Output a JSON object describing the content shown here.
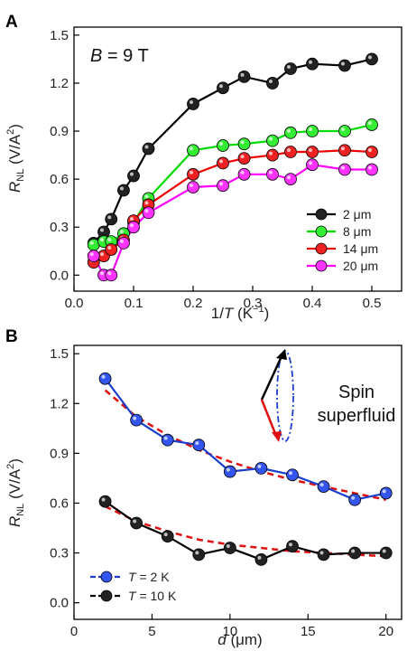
{
  "chart_data": [
    {
      "panel": "A",
      "type": "line",
      "annotation_prefix": "B",
      "annotation_suffix": " = 9 T",
      "xlabel": {
        "base": "1/",
        "italic": "T",
        "unit": " (K",
        "sup": "−1",
        "close": ")"
      },
      "ylabel": {
        "base": "R",
        "sub": "NL",
        "unit": " (V/A",
        "sup": "2",
        "close": ")"
      },
      "xlim": [
        0.0,
        0.55
      ],
      "ylim": [
        -0.1,
        1.55
      ],
      "xticks": [
        "0.0",
        "0.1",
        "0.2",
        "0.3",
        "0.4",
        "0.5"
      ],
      "yticks": [
        "0.0",
        "0.3",
        "0.6",
        "0.9",
        "1.2",
        "1.5"
      ],
      "legend_position": "lower-right",
      "series": [
        {
          "name": "2 μm",
          "color": "#000000",
          "marker_color": "#222222",
          "x": [
            0.033,
            0.05,
            0.0625,
            0.0833,
            0.1,
            0.125,
            0.2,
            0.25,
            0.2857,
            0.3333,
            0.3636,
            0.4,
            0.4545,
            0.5
          ],
          "y": [
            0.2,
            0.27,
            0.35,
            0.53,
            0.62,
            0.79,
            1.07,
            1.17,
            1.24,
            1.2,
            1.29,
            1.32,
            1.31,
            1.35
          ]
        },
        {
          "name": "8 μm",
          "color": "#00dd00",
          "marker_color": "#33ee33",
          "x": [
            0.033,
            0.05,
            0.0625,
            0.0833,
            0.1,
            0.125,
            0.2,
            0.25,
            0.2857,
            0.3333,
            0.3636,
            0.4,
            0.4545,
            0.5
          ],
          "y": [
            0.19,
            0.21,
            0.21,
            0.26,
            0.33,
            0.48,
            0.78,
            0.81,
            0.82,
            0.84,
            0.89,
            0.9,
            0.9,
            0.94
          ]
        },
        {
          "name": "14 μm",
          "color": "#ee0000",
          "marker_color": "#ee2222",
          "x": [
            0.033,
            0.05,
            0.0625,
            0.0833,
            0.1,
            0.125,
            0.2,
            0.25,
            0.2857,
            0.3333,
            0.3636,
            0.4,
            0.4545,
            0.5
          ],
          "y": [
            0.08,
            0.12,
            0.16,
            0.22,
            0.34,
            0.44,
            0.63,
            0.7,
            0.73,
            0.75,
            0.77,
            0.77,
            0.78,
            0.77
          ]
        },
        {
          "name": "20 μm",
          "color": "#ff00ff",
          "marker_color": "#ff33ff",
          "x": [
            0.033,
            0.05,
            0.0625,
            0.0833,
            0.1,
            0.125,
            0.2,
            0.25,
            0.2857,
            0.3333,
            0.3636,
            0.4,
            0.4545,
            0.5
          ],
          "y": [
            0.12,
            0.0,
            0.0,
            0.2,
            0.3,
            0.39,
            0.55,
            0.56,
            0.63,
            0.63,
            0.6,
            0.69,
            0.66,
            0.66
          ]
        }
      ]
    },
    {
      "panel": "B",
      "type": "line",
      "annotation": [
        "Spin",
        "superfluid"
      ],
      "xlabel": {
        "italic": "d",
        "unit": " (μm)"
      },
      "ylabel": {
        "base": "R",
        "sub": "NL",
        "unit": " (V/A",
        "sup": "2",
        "close": ")"
      },
      "xlim": [
        0,
        21
      ],
      "ylim": [
        -0.1,
        1.55
      ],
      "xticks": [
        "0",
        "5",
        "10",
        "15",
        "20"
      ],
      "yticks": [
        "0.0",
        "0.3",
        "0.6",
        "0.9",
        "1.2",
        "1.5"
      ],
      "legend_position": "lower-left",
      "series": [
        {
          "name_prefix": "T",
          "name_suffix": " = 2 K",
          "color": "#1a3fcc",
          "marker_color": "#3355ee",
          "x": [
            2,
            4,
            6,
            8,
            10,
            12,
            14,
            16,
            18,
            20
          ],
          "y": [
            1.35,
            1.1,
            0.98,
            0.95,
            0.79,
            0.81,
            0.77,
            0.7,
            0.62,
            0.66
          ]
        },
        {
          "name_prefix": "T",
          "name_suffix": " = 10 K",
          "color": "#000000",
          "marker_color": "#222222",
          "x": [
            2,
            4,
            6,
            8,
            10,
            12,
            14,
            16,
            18,
            20
          ],
          "y": [
            0.61,
            0.48,
            0.4,
            0.29,
            0.33,
            0.26,
            0.34,
            0.29,
            0.3,
            0.3
          ]
        }
      ],
      "fit_color": "#e01010",
      "fits": [
        {
          "x": [
            2,
            4,
            6,
            8,
            10,
            12,
            14,
            16,
            18,
            20
          ],
          "y": [
            1.28,
            1.12,
            1.01,
            0.92,
            0.85,
            0.79,
            0.74,
            0.7,
            0.66,
            0.62
          ]
        },
        {
          "x": [
            2,
            4,
            6,
            8,
            10,
            12,
            14,
            16,
            18,
            20
          ],
          "y": [
            0.58,
            0.49,
            0.43,
            0.38,
            0.35,
            0.33,
            0.31,
            0.3,
            0.29,
            0.28
          ]
        }
      ]
    }
  ]
}
